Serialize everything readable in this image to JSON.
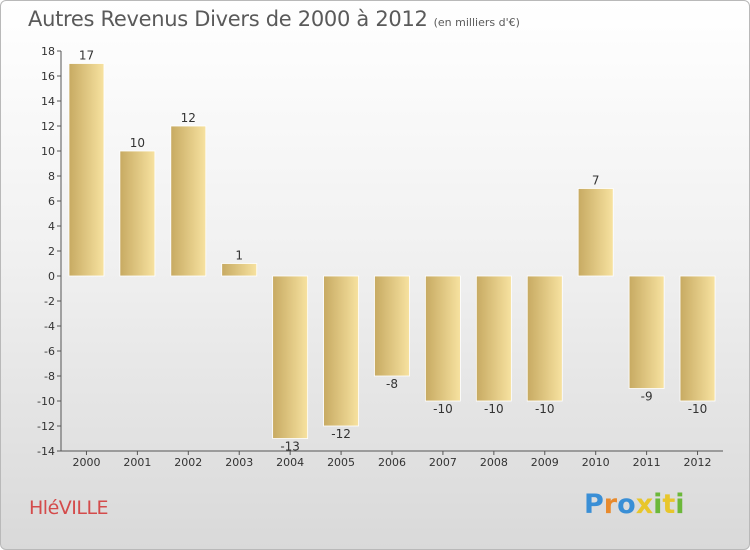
{
  "title": "Autres Revenus Divers de 2000 à 2012",
  "subtitle": "(en milliers d'€)",
  "commune": "HléVILLE",
  "brand": {
    "letters": [
      "P",
      "r",
      "o",
      "x",
      "i",
      "t",
      "i"
    ],
    "colors": [
      "#3a8fd6",
      "#e88a2c",
      "#3a8fd6",
      "#e8c62c",
      "#6cb83a",
      "#e8c62c",
      "#6cb83a"
    ]
  },
  "colors": {
    "bar_light": "#f7e2a0",
    "bar_dark": "#c7aa62",
    "title_text": "#5a5a5a",
    "commune_text": "#d44b4b"
  },
  "chart_data": {
    "type": "bar",
    "title": "Autres Revenus Divers de 2000 à 2012",
    "subtitle": "(en milliers d'€)",
    "categories": [
      "2000",
      "2001",
      "2002",
      "2003",
      "2004",
      "2005",
      "2006",
      "2007",
      "2008",
      "2009",
      "2010",
      "2011",
      "2012"
    ],
    "values": [
      17,
      10,
      12,
      1,
      -13,
      -12,
      -8,
      -10,
      -10,
      -10,
      7,
      -9,
      -10
    ],
    "data_labels": [
      "17",
      "10",
      "12",
      "1",
      "-13",
      "-12",
      "-8",
      "-10",
      "-10",
      "-10",
      "7",
      "-9",
      "-10"
    ],
    "ylim": [
      -14,
      18
    ],
    "yticks": [
      18,
      16,
      14,
      12,
      10,
      8,
      6,
      4,
      2,
      0,
      -2,
      -4,
      -6,
      -8,
      -10,
      -12,
      -14
    ],
    "grid": false,
    "legend": false
  }
}
